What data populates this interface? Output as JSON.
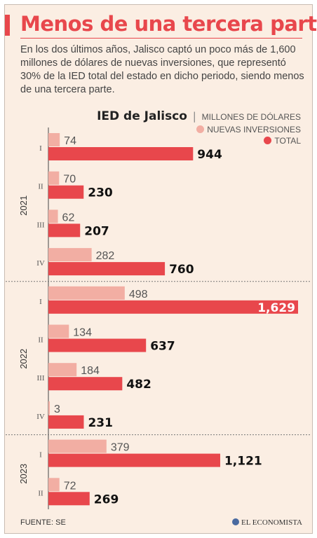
{
  "header": {
    "title": "Menos de una tercera parte",
    "intro": "En los dos últimos años, Jalisco captó un poco más de 1,600 millones de dólares de nuevas inversiones, que representó 30% de la IED total del estado en dicho periodo, siendo menos de una tercera parte."
  },
  "legend": {
    "title": "IED de Jalisco",
    "separator": "|",
    "unit": "MILLONES DE DÓLARES"
  },
  "colors": {
    "accent": "#e8474c",
    "total": "#e8474c",
    "nuevas": "#f2aea3",
    "background": "#fbeee3"
  },
  "chart_data": {
    "type": "bar",
    "orientation": "horizontal",
    "title": "IED de Jalisco",
    "unit": "MILLONES DE DÓLARES",
    "groups": [
      {
        "year": "2021",
        "quarters": [
          "I",
          "II",
          "III",
          "IV"
        ]
      },
      {
        "year": "2022",
        "quarters": [
          "I",
          "II",
          "III",
          "IV"
        ]
      },
      {
        "year": "2023",
        "quarters": [
          "I",
          "II"
        ]
      }
    ],
    "categories": [
      "2021 I",
      "2021 II",
      "2021 III",
      "2021 IV",
      "2022 I",
      "2022 II",
      "2022 III",
      "2022 IV",
      "2023 I",
      "2023 II"
    ],
    "quarter_labels": [
      "I",
      "II",
      "III",
      "IV",
      "I",
      "II",
      "III",
      "IV",
      "I",
      "II"
    ],
    "series": [
      {
        "name": "NUEVAS INVERSIONES",
        "values": [
          74,
          70,
          62,
          282,
          498,
          134,
          184,
          3,
          379,
          72
        ],
        "labels": [
          "74",
          "70",
          "62",
          "282",
          "498",
          "134",
          "184",
          "3",
          "379",
          "72"
        ]
      },
      {
        "name": "TOTAL",
        "values": [
          944,
          230,
          207,
          760,
          1629,
          637,
          482,
          231,
          1121,
          269
        ],
        "labels": [
          "944",
          "230",
          "207",
          "760",
          "1,629",
          "637",
          "482",
          "231",
          "1,121",
          "269"
        ]
      }
    ],
    "xlim": [
      0,
      1629
    ],
    "grid": false,
    "legend_position": "top-right"
  },
  "footer": {
    "source": "FUENTE: SE",
    "brand": "EL ECONOMISTA"
  }
}
